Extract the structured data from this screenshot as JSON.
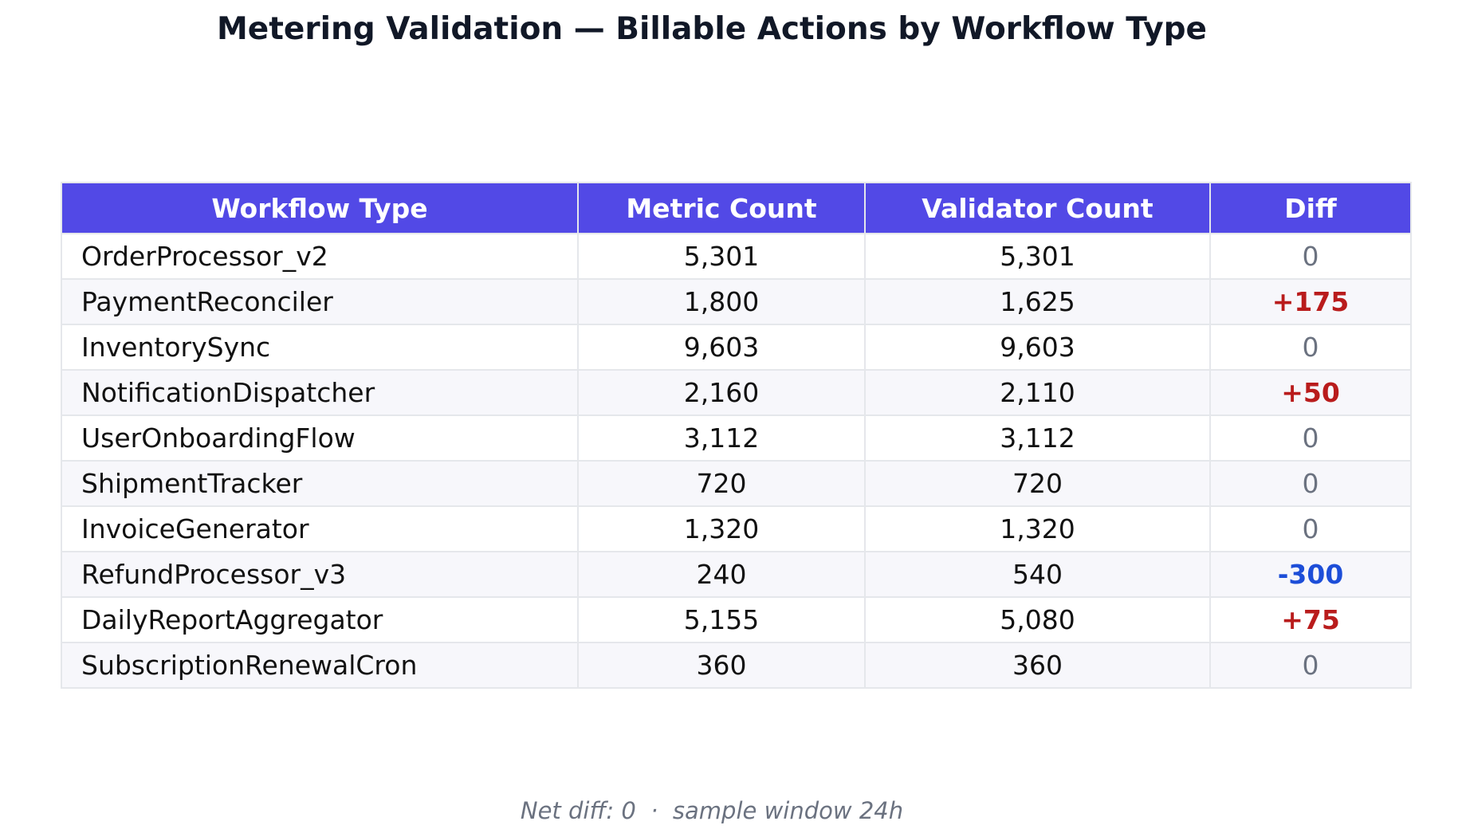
{
  "chart_data": {
    "type": "table",
    "title": "Metering Validation — Billable Actions by Workflow Type",
    "columns": [
      "Workflow Type",
      "Metric Count",
      "Validator Count",
      "Diff"
    ],
    "rows": [
      {
        "workflow": "OrderProcessor_v2",
        "metric": "5,301",
        "validator": "5,301",
        "diff": "0",
        "diff_status": "zero"
      },
      {
        "workflow": "PaymentReconciler",
        "metric": "1,800",
        "validator": "1,625",
        "diff": "+175",
        "diff_status": "pos"
      },
      {
        "workflow": "InventorySync",
        "metric": "9,603",
        "validator": "9,603",
        "diff": "0",
        "diff_status": "zero"
      },
      {
        "workflow": "NotificationDispatcher",
        "metric": "2,160",
        "validator": "2,110",
        "diff": "+50",
        "diff_status": "pos"
      },
      {
        "workflow": "UserOnboardingFlow",
        "metric": "3,112",
        "validator": "3,112",
        "diff": "0",
        "diff_status": "zero"
      },
      {
        "workflow": "ShipmentTracker",
        "metric": "720",
        "validator": "720",
        "diff": "0",
        "diff_status": "zero"
      },
      {
        "workflow": "InvoiceGenerator",
        "metric": "1,320",
        "validator": "1,320",
        "diff": "0",
        "diff_status": "zero"
      },
      {
        "workflow": "RefundProcessor_v3",
        "metric": "240",
        "validator": "540",
        "diff": "-300",
        "diff_status": "neg"
      },
      {
        "workflow": "DailyReportAggregator",
        "metric": "5,155",
        "validator": "5,080",
        "diff": "+75",
        "diff_status": "pos"
      },
      {
        "workflow": "SubscriptionRenewalCron",
        "metric": "360",
        "validator": "360",
        "diff": "0",
        "diff_status": "zero"
      }
    ],
    "footer": "Net diff: 0  ·  sample window 24h"
  },
  "colors": {
    "header_bg": "#5249e6",
    "diff_positive": "#b91c1c",
    "diff_negative": "#1d4ed8",
    "diff_zero": "#6b7280"
  }
}
